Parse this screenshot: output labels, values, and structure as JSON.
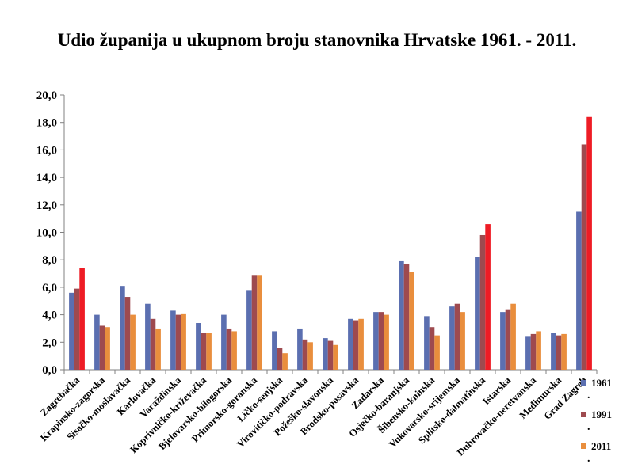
{
  "chart_data": {
    "type": "bar",
    "title": "Udio županija u ukupnom broju stanovnika Hrvatske 1961. - 2011.",
    "xlabel": "",
    "ylabel": "",
    "ylim": [
      0,
      20
    ],
    "y_ticks": [
      "0,0",
      "2,0",
      "4,0",
      "6,0",
      "8,0",
      "10,0",
      "12,0",
      "14,0",
      "16,0",
      "18,0",
      "20,0"
    ],
    "grid": false,
    "legend_position": "right",
    "categories": [
      "Zagrebačka",
      "Krapinsko-zagorska",
      "Sisačko-moslavačka",
      "Karlovačka",
      "Varaždinska",
      "Koprivničko-križevačka",
      "Bjelovarsko-bilogorska",
      "Primorsko-goranska",
      "Ličko-senjska",
      "Virovitičko-podravska",
      "Požeško-slavonska",
      "Brodsko-posavska",
      "Zadarska",
      "Osječko-baranjska",
      "Šibensko-kninska",
      "Vukovarsko-srijemska",
      "Splitsko-dalmatinska",
      "Istarska",
      "Dubrovačko-neretvanska",
      "Međimurska",
      "Grad Zagreb"
    ],
    "series": [
      {
        "name": "1961",
        "legend_suffix": ".",
        "color": "#5b6fb0",
        "values": [
          5.6,
          4.0,
          6.1,
          4.8,
          4.3,
          3.4,
          4.0,
          5.8,
          2.8,
          3.0,
          2.3,
          3.7,
          4.2,
          7.9,
          3.9,
          4.6,
          8.2,
          4.2,
          2.4,
          2.7,
          11.5
        ]
      },
      {
        "name": "1991",
        "legend_suffix": ".",
        "color": "#9e4a4f",
        "values": [
          5.9,
          3.2,
          5.3,
          3.7,
          4.0,
          2.7,
          3.0,
          6.9,
          1.6,
          2.2,
          2.1,
          3.6,
          4.2,
          7.7,
          3.1,
          4.8,
          9.8,
          4.4,
          2.6,
          2.5,
          16.4
        ]
      },
      {
        "name": "2011",
        "legend_suffix": ".",
        "color": "#e98e3d",
        "values": [
          7.4,
          3.1,
          4.0,
          3.0,
          4.1,
          2.7,
          2.8,
          6.9,
          1.2,
          2.0,
          1.8,
          3.7,
          4.0,
          7.1,
          2.5,
          4.2,
          10.6,
          4.8,
          2.8,
          2.6,
          18.4
        ]
      }
    ],
    "highlight_color": "#ee1c25",
    "highlight_categories": [
      "Zagrebačka",
      "Splitsko-dalmatinska",
      "Grad Zagreb"
    ]
  }
}
